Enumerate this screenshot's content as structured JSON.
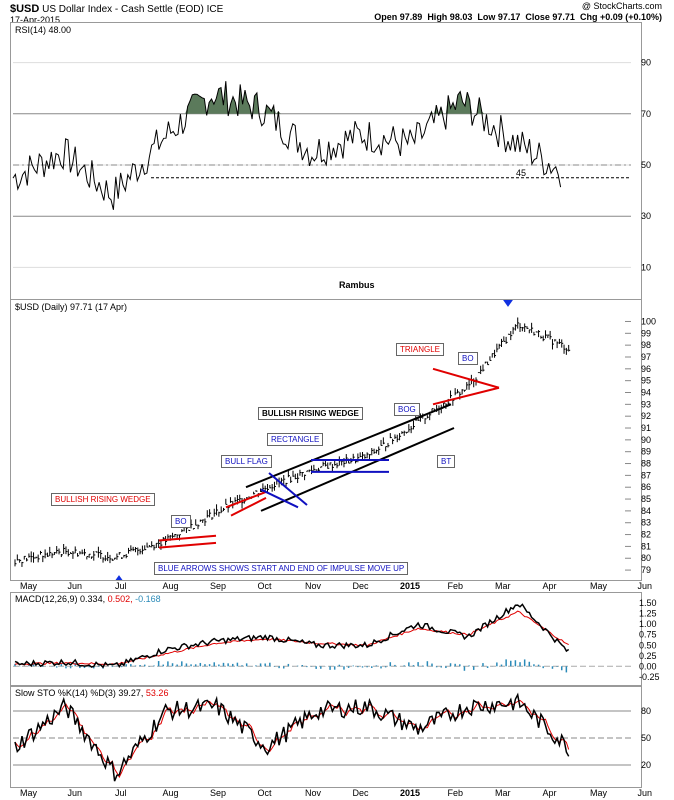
{
  "header": {
    "symbol": "$USD",
    "name": "US Dollar Index - Cash Settle (EOD)",
    "exchange": "ICE",
    "date": "17-Apr-2015",
    "open": "Open 97.89",
    "high": "High 98.03",
    "low": "Low 97.17",
    "close": "Close 97.71",
    "chg": "Chg +0.09 (+0.10%)",
    "brand": "@ StockCharts.com"
  },
  "rsi_panel": {
    "label": "RSI(14) 48.00",
    "watermark": "Rambus",
    "ticks": [
      "90",
      "70",
      "50",
      "30",
      "10"
    ],
    "dashed_label": "45"
  },
  "price_panel": {
    "label": "$USD (Daily) 97.71 (17 Apr)",
    "ticks": [
      "100",
      "99",
      "98",
      "97",
      "96",
      "95",
      "94",
      "93",
      "92",
      "91",
      "90",
      "89",
      "88",
      "87",
      "86",
      "85",
      "84",
      "83",
      "82",
      "81",
      "80",
      "79"
    ],
    "annotations": {
      "bullish_rising_wedge_red": "BULLISH RISING WEDGE",
      "bo1": "BO",
      "bull_flag": "BULL FLAG",
      "rectangle": "RECTANGLE",
      "bullish_rising_wedge_black": "BULLISH RISING WEDGE",
      "bog": "BOG",
      "triangle": "TRIANGLE",
      "bo2": "BO",
      "bt": "BT",
      "blue_arrows_note": "BLUE ARROWS SHOWS START AND END OF IMPULSE MOVE UP"
    }
  },
  "macd_panel": {
    "label_prefix": "MACD(12,26,9)",
    "macd_val": "0.334,",
    "signal_val": "0.502,",
    "hist_val": "-0.168",
    "ticks": [
      "1.50",
      "1.25",
      "1.00",
      "0.75",
      "0.50",
      "0.25",
      "0.00",
      "-0.25"
    ]
  },
  "sto_panel": {
    "label_prefix": "Slow STO %K(14) %D(3)",
    "k_val": "39.27,",
    "d_val": "53.26",
    "ticks": [
      "80",
      "50",
      "20"
    ]
  },
  "x_axis": [
    "May",
    "Jun",
    "Jul",
    "Aug",
    "Sep",
    "Oct",
    "Nov",
    "Dec",
    "2015",
    "Feb",
    "Mar",
    "Apr",
    "May",
    "Jun"
  ],
  "colors": {
    "rsi_fill": "#5b7a5b",
    "macd_signal": "#e00000",
    "macd_hist": "#2a8ab8",
    "arrow": "#1030e0",
    "wedge_red": "#e00000",
    "pattern_blue": "#1010c0"
  },
  "chart_data": [
    {
      "type": "line",
      "title": "RSI(14) 48.00",
      "ylim": [
        0,
        100
      ],
      "x": [
        "May",
        "Jun",
        "Jul",
        "Aug",
        "Sep",
        "Oct",
        "Nov",
        "Dec",
        "2015",
        "Feb",
        "Mar",
        "Apr"
      ],
      "series": [
        {
          "name": "RSI(14)",
          "values": [
            45,
            55,
            38,
            60,
            78,
            72,
            55,
            62,
            58,
            75,
            60,
            48
          ]
        }
      ]
    },
    {
      "type": "line",
      "title": "$USD (Daily) 97.71 (17 Apr)",
      "ylim": [
        78.5,
        100.8
      ],
      "x": [
        "May",
        "Jun",
        "Jul",
        "Aug",
        "Sep",
        "Oct",
        "Nov",
        "Dec",
        "2015",
        "Feb",
        "Mar",
        "Apr"
      ],
      "series": [
        {
          "name": "$USD",
          "values": [
            79.8,
            80.6,
            80.1,
            81.5,
            83.9,
            86.0,
            87.6,
            88.6,
            91.5,
            94.5,
            99.8,
            97.7
          ]
        }
      ]
    },
    {
      "type": "line",
      "title": "MACD(12,26,9) 0.334, 0.502, -0.168",
      "ylim": [
        -0.35,
        1.6
      ],
      "x": [
        "May",
        "Jun",
        "Jul",
        "Aug",
        "Sep",
        "Oct",
        "Nov",
        "Dec",
        "2015",
        "Feb",
        "Mar",
        "Apr"
      ],
      "series": [
        {
          "name": "MACD",
          "values": [
            0.05,
            0.1,
            0.0,
            0.4,
            0.6,
            0.7,
            0.5,
            0.5,
            1.0,
            0.7,
            1.5,
            0.33
          ]
        },
        {
          "name": "Signal",
          "values": [
            0.05,
            0.08,
            0.05,
            0.3,
            0.55,
            0.65,
            0.55,
            0.5,
            0.9,
            0.75,
            1.3,
            0.5
          ]
        }
      ]
    },
    {
      "type": "line",
      "title": "Slow STO %K(14) %D(3) 39.27, 53.26",
      "ylim": [
        0,
        100
      ],
      "x": [
        "May",
        "Jun",
        "Jul",
        "Aug",
        "Sep",
        "Oct",
        "Nov",
        "Dec",
        "2015",
        "Feb",
        "Mar",
        "Apr"
      ],
      "series": [
        {
          "name": "%K",
          "values": [
            40,
            85,
            10,
            80,
            85,
            40,
            80,
            85,
            60,
            85,
            90,
            39
          ]
        },
        {
          "name": "%D",
          "values": [
            45,
            80,
            15,
            75,
            82,
            45,
            78,
            82,
            62,
            82,
            85,
            53
          ]
        }
      ]
    }
  ]
}
